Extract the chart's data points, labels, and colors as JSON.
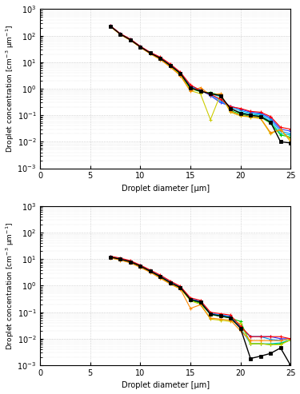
{
  "ylabel": "Droplet concentration [cm$^{-3}$ μm$^{-1}$]",
  "xlabel": "Droplet diameter [μm]",
  "xlim": [
    0,
    25
  ],
  "background_color": "#ffffff",
  "cloud14": {
    "diameters": [
      7,
      8,
      9,
      10,
      11,
      12,
      13,
      14,
      15,
      16,
      17,
      18,
      19,
      20,
      21,
      22,
      23,
      24,
      25
    ],
    "mean": [
      230,
      115,
      70,
      38,
      22,
      14,
      7.5,
      3.8,
      1.1,
      0.8,
      0.65,
      0.55,
      0.18,
      0.12,
      0.1,
      0.09,
      0.055,
      0.01,
      0.009
    ],
    "series": [
      [
        235,
        118,
        72,
        39,
        23,
        15,
        8.0,
        4.0,
        1.3,
        0.9,
        0.55,
        0.3,
        0.22,
        0.17,
        0.13,
        0.12,
        0.08,
        0.03,
        0.025
      ],
      [
        232,
        116,
        71,
        38.5,
        22.5,
        14.5,
        7.8,
        3.9,
        1.2,
        0.88,
        0.6,
        0.35,
        0.2,
        0.15,
        0.12,
        0.11,
        0.07,
        0.025,
        0.02
      ],
      [
        230,
        115,
        70,
        38,
        22,
        14,
        7.5,
        3.7,
        1.1,
        0.82,
        0.65,
        0.5,
        0.17,
        0.13,
        0.11,
        0.1,
        0.06,
        0.02,
        0.018
      ],
      [
        228,
        114,
        69,
        37.5,
        21.5,
        13.5,
        7.2,
        3.6,
        1.0,
        0.78,
        0.7,
        0.58,
        0.15,
        0.11,
        0.09,
        0.085,
        0.05,
        0.018,
        0.015
      ],
      [
        225,
        112,
        68,
        37,
        21,
        13,
        6.8,
        3.3,
        0.85,
        0.65,
        0.068,
        0.6,
        0.13,
        0.095,
        0.085,
        0.075,
        0.02,
        0.03,
        0.01
      ],
      [
        222,
        110,
        67,
        36,
        20.5,
        12.5,
        6.5,
        3.1,
        0.8,
        1.1,
        0.58,
        0.65,
        0.14,
        0.098,
        0.088,
        0.078,
        0.022,
        0.028,
        0.012
      ],
      [
        240,
        120,
        75,
        40,
        23.5,
        15.5,
        8.5,
        4.2,
        1.4,
        0.85,
        0.62,
        0.4,
        0.21,
        0.18,
        0.14,
        0.13,
        0.09,
        0.035,
        0.03
      ]
    ],
    "colors": [
      "#3333ff",
      "#0099ff",
      "#00cccc",
      "#00cc00",
      "#cccc00",
      "#ff8800",
      "#ff0000"
    ]
  },
  "cloud17": {
    "diameters": [
      7,
      8,
      9,
      10,
      11,
      12,
      13,
      14,
      15,
      16,
      17,
      18,
      19,
      20,
      21,
      22,
      23,
      24,
      25
    ],
    "mean": [
      12,
      10,
      8.0,
      5.5,
      3.5,
      2.2,
      1.3,
      0.85,
      0.3,
      0.24,
      0.085,
      0.072,
      0.062,
      0.025,
      0.0018,
      0.0022,
      0.0028,
      0.0045,
      0.001
    ],
    "series": [
      [
        12.5,
        10.5,
        8.5,
        5.8,
        3.7,
        2.4,
        1.4,
        0.9,
        0.32,
        0.26,
        0.09,
        0.08,
        0.07,
        0.028,
        0.012,
        0.012,
        0.012,
        0.01,
        0.01
      ],
      [
        12.2,
        10.2,
        8.2,
        5.6,
        3.6,
        2.3,
        1.35,
        0.88,
        0.31,
        0.25,
        0.088,
        0.077,
        0.067,
        0.026,
        0.012,
        0.012,
        0.0095,
        0.0085,
        0.01
      ],
      [
        12.0,
        10.0,
        8.0,
        5.5,
        3.5,
        2.2,
        1.3,
        0.85,
        0.3,
        0.24,
        0.085,
        0.075,
        0.065,
        0.025,
        0.0065,
        0.0065,
        0.0065,
        0.007,
        0.009
      ],
      [
        11.8,
        9.8,
        7.8,
        5.3,
        3.4,
        2.1,
        1.25,
        0.82,
        0.28,
        0.22,
        0.082,
        0.07,
        0.06,
        0.045,
        0.0065,
        0.0065,
        0.006,
        0.0065,
        0.009
      ],
      [
        11.5,
        9.5,
        7.5,
        5.1,
        3.3,
        2.0,
        1.2,
        0.78,
        0.27,
        0.2,
        0.055,
        0.05,
        0.045,
        0.038,
        0.0065,
        0.0065,
        0.006,
        0.006,
        0.009
      ],
      [
        11.2,
        9.2,
        7.3,
        4.9,
        3.2,
        1.9,
        1.15,
        0.75,
        0.14,
        0.19,
        0.06,
        0.055,
        0.05,
        0.02,
        0.0085,
        0.0085,
        0.0085,
        0.0085,
        0.01
      ],
      [
        13.0,
        11.0,
        8.8,
        6.0,
        3.9,
        2.5,
        1.5,
        0.95,
        0.35,
        0.28,
        0.1,
        0.088,
        0.078,
        0.03,
        0.012,
        0.012,
        0.012,
        0.012,
        0.01
      ]
    ],
    "colors": [
      "#3333ff",
      "#0099ff",
      "#00cccc",
      "#00cc00",
      "#cccc00",
      "#ff8800",
      "#ff0000"
    ]
  }
}
